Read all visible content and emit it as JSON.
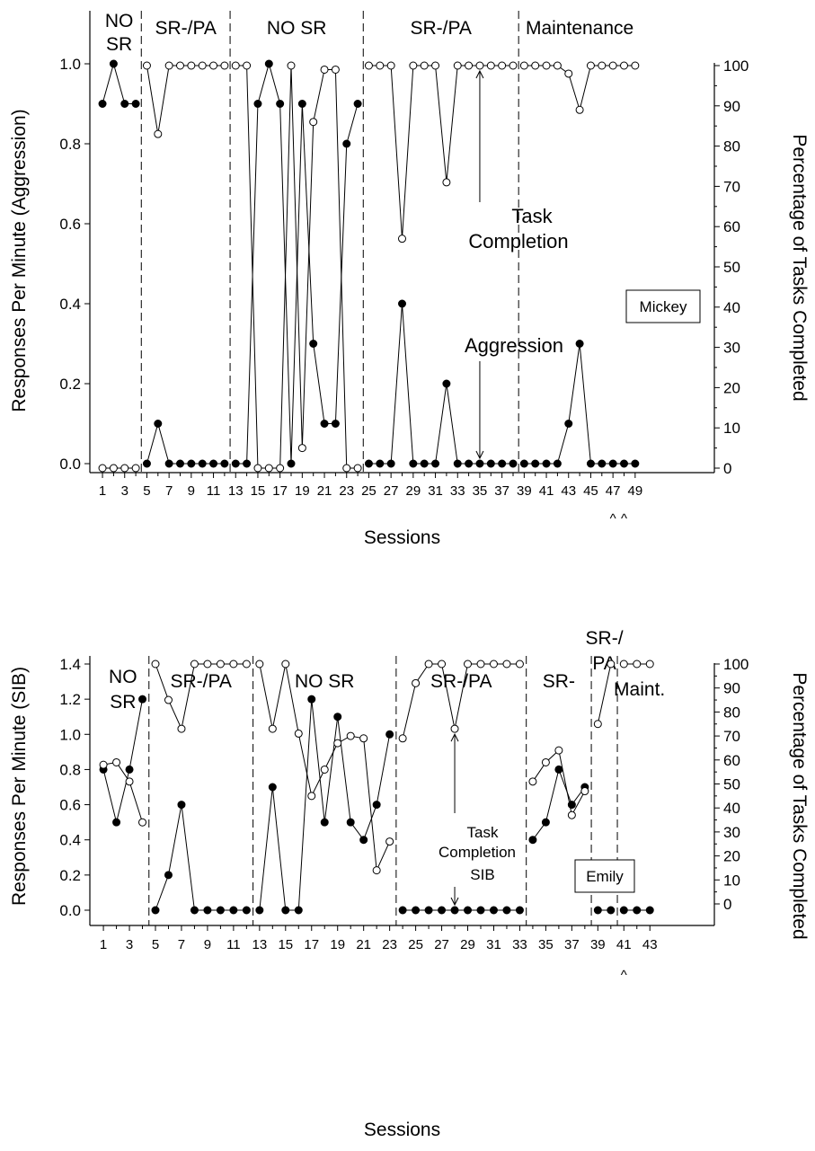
{
  "colors": {
    "ink": "#000000",
    "open_marker_fill": "#ffffff",
    "filled_marker": "#000000",
    "background": "#ffffff"
  },
  "chart_data": [
    {
      "type": "line",
      "participant": "Mickey",
      "xlabel": "Sessions",
      "ylabel_left": "Responses Per Minute (Aggression)",
      "ylabel_right": "Percentage of Tasks Completed",
      "ylim_left": [
        0,
        1.0
      ],
      "ylim_right": [
        0,
        100
      ],
      "xlim": [
        0,
        50
      ],
      "yticks_left": [
        "0.0",
        "0.2",
        "0.4",
        "0.6",
        "0.8",
        "1.0"
      ],
      "yticks_right": [
        "0",
        "10",
        "20",
        "30",
        "40",
        "50",
        "60",
        "70",
        "80",
        "90",
        "100"
      ],
      "xticks": [
        "1",
        "3",
        "5",
        "7",
        "9",
        "11",
        "13",
        "15",
        "17",
        "19",
        "21",
        "23",
        "25",
        "27",
        "29",
        "31",
        "33",
        "35",
        "37",
        "39",
        "41",
        "43",
        "45",
        "47",
        "49"
      ],
      "phase_lines": [
        4.5,
        12.5,
        24.5,
        38.5
      ],
      "phases": [
        {
          "label": [
            "NO",
            "SR"
          ],
          "x": 2.5
        },
        {
          "label": [
            "SR-/PA"
          ],
          "x": 8.5
        },
        {
          "label": [
            "NO SR"
          ],
          "x": 18.5
        },
        {
          "label": [
            "SR-/PA"
          ],
          "x": 31.5
        },
        {
          "label": [
            "Maintenance"
          ],
          "x": 44
        }
      ],
      "carets": [
        {
          "text": "^",
          "x": 47
        },
        {
          "text": "^",
          "x": 48
        }
      ],
      "series": [
        {
          "name": "Aggression",
          "axis": "left",
          "marker": "filled",
          "segments": [
            [
              [
                1,
                0.9
              ],
              [
                2,
                1.0
              ],
              [
                3,
                0.9
              ],
              [
                4,
                0.9
              ]
            ],
            [
              [
                5,
                0.0
              ],
              [
                6,
                0.1
              ],
              [
                7,
                0.0
              ],
              [
                8,
                0.0
              ],
              [
                9,
                0.0
              ],
              [
                10,
                0.0
              ],
              [
                11,
                0.0
              ],
              [
                12,
                0.0
              ]
            ],
            [
              [
                13,
                0.0
              ],
              [
                14,
                0.0
              ],
              [
                15,
                0.9
              ],
              [
                16,
                1.0
              ],
              [
                17,
                0.9
              ],
              [
                18,
                0.0
              ],
              [
                19,
                0.9
              ],
              [
                20,
                0.3
              ],
              [
                21,
                0.1
              ],
              [
                22,
                0.1
              ],
              [
                23,
                0.8
              ],
              [
                24,
                0.9
              ]
            ],
            [
              [
                25,
                0.0
              ],
              [
                26,
                0.0
              ],
              [
                27,
                0.0
              ],
              [
                28,
                0.4
              ],
              [
                29,
                0.0
              ],
              [
                30,
                0.0
              ],
              [
                31,
                0.0
              ],
              [
                32,
                0.2
              ],
              [
                33,
                0.0
              ],
              [
                34,
                0.0
              ],
              [
                35,
                0.0
              ],
              [
                36,
                0.0
              ],
              [
                37,
                0.0
              ],
              [
                38,
                0.0
              ]
            ],
            [
              [
                39,
                0.0
              ],
              [
                40,
                0.0
              ],
              [
                41,
                0.0
              ],
              [
                42,
                0.0
              ],
              [
                43,
                0.1
              ],
              [
                44,
                0.3
              ],
              [
                45,
                0.0
              ],
              [
                46,
                0.0
              ],
              [
                47,
                0.0
              ],
              [
                48,
                0.0
              ],
              [
                49,
                0.0
              ]
            ]
          ]
        },
        {
          "name": "Task Completion",
          "axis": "right",
          "marker": "open",
          "segments": [
            [
              [
                1,
                0
              ],
              [
                2,
                0
              ],
              [
                3,
                0
              ],
              [
                4,
                0
              ]
            ],
            [
              [
                5,
                100
              ],
              [
                6,
                83
              ],
              [
                7,
                100
              ],
              [
                8,
                100
              ],
              [
                9,
                100
              ],
              [
                10,
                100
              ],
              [
                11,
                100
              ],
              [
                12,
                100
              ]
            ],
            [
              [
                13,
                100
              ],
              [
                14,
                100
              ],
              [
                15,
                0
              ],
              [
                16,
                0
              ],
              [
                17,
                0
              ],
              [
                18,
                100
              ],
              [
                19,
                5
              ],
              [
                20,
                86
              ],
              [
                21,
                99
              ],
              [
                22,
                99
              ],
              [
                23,
                0
              ],
              [
                24,
                0
              ]
            ],
            [
              [
                25,
                100
              ],
              [
                26,
                100
              ],
              [
                27,
                100
              ],
              [
                28,
                57
              ],
              [
                29,
                100
              ],
              [
                30,
                100
              ],
              [
                31,
                100
              ],
              [
                32,
                71
              ],
              [
                33,
                100
              ],
              [
                34,
                100
              ],
              [
                35,
                100
              ],
              [
                36,
                100
              ],
              [
                37,
                100
              ],
              [
                38,
                100
              ]
            ],
            [
              [
                39,
                100
              ],
              [
                40,
                100
              ],
              [
                41,
                100
              ],
              [
                42,
                100
              ],
              [
                43,
                98
              ],
              [
                44,
                89
              ],
              [
                45,
                100
              ],
              [
                46,
                100
              ],
              [
                47,
                100
              ],
              [
                48,
                100
              ],
              [
                49,
                100
              ]
            ]
          ]
        }
      ],
      "annotations": [
        {
          "lines": [
            "Task",
            "Completion"
          ],
          "arrow_to": [
            35,
            100,
            "right"
          ]
        },
        {
          "lines": [
            "Aggression"
          ],
          "arrow_to": [
            35,
            0.0,
            "left"
          ]
        }
      ]
    },
    {
      "type": "line",
      "participant": "Emily",
      "xlabel": "Sessions",
      "ylabel_left": "Responses Per Minute (SIB)",
      "ylabel_right": "Percentage of Tasks Completed",
      "ylim_left": [
        0,
        1.4
      ],
      "ylim_right": [
        0,
        100
      ],
      "xlim": [
        0,
        44
      ],
      "yticks_left": [
        "0.0",
        "0.2",
        "0.4",
        "0.6",
        "0.8",
        "1.0",
        "1.2",
        "1.4"
      ],
      "yticks_right": [
        "0",
        "10",
        "20",
        "30",
        "40",
        "50",
        "60",
        "70",
        "80",
        "90",
        "100"
      ],
      "xticks": [
        "1",
        "3",
        "5",
        "7",
        "9",
        "11",
        "13",
        "15",
        "17",
        "19",
        "21",
        "23",
        "25",
        "27",
        "29",
        "31",
        "33",
        "35",
        "37",
        "39",
        "41",
        "43"
      ],
      "phase_lines": [
        4.5,
        12.5,
        23.5,
        33.5,
        38.5,
        40.5
      ],
      "phases": [
        {
          "label": [
            "NO",
            "SR"
          ],
          "x": 2.5
        },
        {
          "label": [
            "SR-/PA"
          ],
          "x": 8.5
        },
        {
          "label": [
            "NO SR"
          ],
          "x": 18
        },
        {
          "label": [
            "SR-/PA"
          ],
          "x": 28.5
        },
        {
          "label": [
            "SR-"
          ],
          "x": 36
        },
        {
          "label": [
            "SR-/",
            "PA"
          ],
          "x": 39.5
        },
        {
          "label": [
            "Maint."
          ],
          "x": 42.2
        }
      ],
      "carets": [
        {
          "text": "^",
          "x": 41
        }
      ],
      "series": [
        {
          "name": "SIB",
          "axis": "left",
          "marker": "filled",
          "segments": [
            [
              [
                1,
                0.8
              ],
              [
                2,
                0.5
              ],
              [
                3,
                0.8
              ],
              [
                4,
                1.2
              ]
            ],
            [
              [
                5,
                0.0
              ],
              [
                6,
                0.2
              ],
              [
                7,
                0.6
              ],
              [
                8,
                0.0
              ],
              [
                9,
                0.0
              ],
              [
                10,
                0.0
              ],
              [
                11,
                0.0
              ],
              [
                12,
                0.0
              ]
            ],
            [
              [
                13,
                0.0
              ],
              [
                14,
                0.7
              ],
              [
                15,
                0.0
              ],
              [
                16,
                0.0
              ],
              [
                17,
                1.2
              ],
              [
                18,
                0.5
              ],
              [
                19,
                1.1
              ],
              [
                20,
                0.5
              ],
              [
                21,
                0.4
              ],
              [
                22,
                0.6
              ],
              [
                23,
                1.0
              ]
            ],
            [
              [
                24,
                0.0
              ],
              [
                25,
                0.0
              ],
              [
                26,
                0.0
              ],
              [
                27,
                0.0
              ],
              [
                28,
                0.0
              ],
              [
                29,
                0.0
              ],
              [
                30,
                0.0
              ],
              [
                31,
                0.0
              ],
              [
                32,
                0.0
              ],
              [
                33,
                0.0
              ]
            ],
            [
              [
                34,
                0.4
              ],
              [
                35,
                0.5
              ],
              [
                36,
                0.8
              ],
              [
                37,
                0.6
              ],
              [
                38,
                0.7
              ]
            ],
            [
              [
                39,
                0.0
              ],
              [
                40,
                0.0
              ]
            ],
            [
              [
                41,
                0.0
              ],
              [
                42,
                0.0
              ],
              [
                43,
                0.0
              ]
            ]
          ]
        },
        {
          "name": "Task Completion",
          "axis": "right",
          "marker": "open",
          "segments": [
            [
              [
                1,
                58
              ],
              [
                2,
                59
              ],
              [
                3,
                51
              ],
              [
                4,
                34
              ]
            ],
            [
              [
                5,
                100
              ],
              [
                6,
                85
              ],
              [
                7,
                73
              ],
              [
                8,
                100
              ],
              [
                9,
                100
              ],
              [
                10,
                100
              ],
              [
                11,
                100
              ],
              [
                12,
                100
              ]
            ],
            [
              [
                13,
                100
              ],
              [
                14,
                73
              ],
              [
                15,
                100
              ],
              [
                16,
                71
              ],
              [
                17,
                45
              ],
              [
                18,
                56
              ],
              [
                19,
                67
              ],
              [
                20,
                70
              ],
              [
                21,
                69
              ],
              [
                22,
                14
              ],
              [
                23,
                26
              ]
            ],
            [
              [
                24,
                69
              ],
              [
                25,
                92
              ],
              [
                26,
                100
              ],
              [
                27,
                100
              ],
              [
                28,
                73
              ],
              [
                29,
                100
              ],
              [
                30,
                100
              ],
              [
                31,
                100
              ],
              [
                32,
                100
              ],
              [
                33,
                100
              ]
            ],
            [
              [
                34,
                51
              ],
              [
                35,
                59
              ],
              [
                36,
                64
              ],
              [
                37,
                37
              ],
              [
                38,
                47
              ]
            ],
            [
              [
                39,
                75
              ],
              [
                40,
                100
              ]
            ],
            [
              [
                41,
                100
              ],
              [
                42,
                100
              ],
              [
                43,
                100
              ]
            ]
          ]
        }
      ],
      "annotations": [
        {
          "lines": [
            "Task",
            "Completion"
          ],
          "arrow_to": [
            28,
            73,
            "right"
          ]
        },
        {
          "lines": [
            "SIB"
          ],
          "arrow_to": [
            28,
            0.0,
            "left"
          ]
        }
      ]
    }
  ]
}
